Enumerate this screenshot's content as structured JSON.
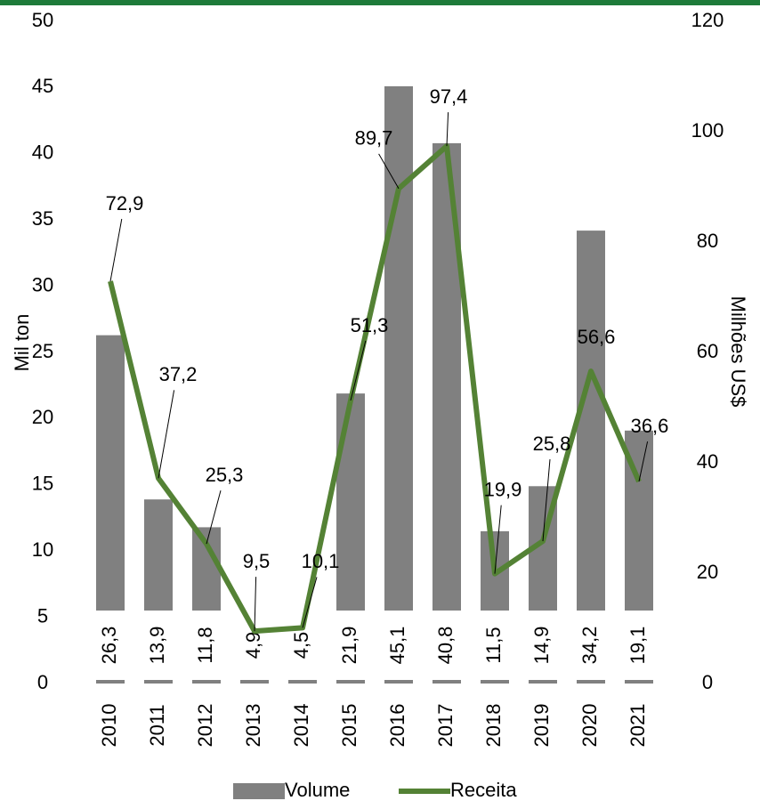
{
  "chart_data": {
    "type": "bar-line",
    "categories": [
      "2010",
      "2011",
      "2012",
      "2013",
      "2014",
      "2015",
      "2016",
      "2017",
      "2018",
      "2019",
      "2020",
      "2021"
    ],
    "y_label": "Mil ton",
    "y2_label": "Milhões US$",
    "ylim": [
      0,
      50
    ],
    "yticks": [
      0,
      5,
      10,
      15,
      20,
      25,
      30,
      35,
      40,
      45,
      50
    ],
    "y2lim": [
      0,
      120
    ],
    "y2ticks": [
      0,
      20,
      40,
      60,
      80,
      100,
      120
    ],
    "legend": "bottom",
    "series": [
      {
        "name": "Volume",
        "type": "bar",
        "color": "#808080",
        "values": [
          26.3,
          13.9,
          11.8,
          4.9,
          4.5,
          21.9,
          45.1,
          40.8,
          11.5,
          14.9,
          34.2,
          19.1
        ],
        "value_labels": [
          "26,3",
          "13,9",
          "11,8",
          "4,9",
          "4,5",
          "21,9",
          "45,1",
          "40,8",
          "11,5",
          "14,9",
          "34,2",
          "19,1"
        ]
      },
      {
        "name": "Receita",
        "type": "line",
        "axis": "y2",
        "color": "#548235",
        "values": [
          72.9,
          37.2,
          25.3,
          9.5,
          10.1,
          51.3,
          89.7,
          97.4,
          19.9,
          25.8,
          56.6,
          36.6
        ],
        "value_labels": [
          "72,9",
          "37,2",
          "25,3",
          "9,5",
          "10,1",
          "51,3",
          "89,7",
          "97,4",
          "19,9",
          "25,8",
          "56,6",
          "36,6"
        ]
      }
    ]
  }
}
